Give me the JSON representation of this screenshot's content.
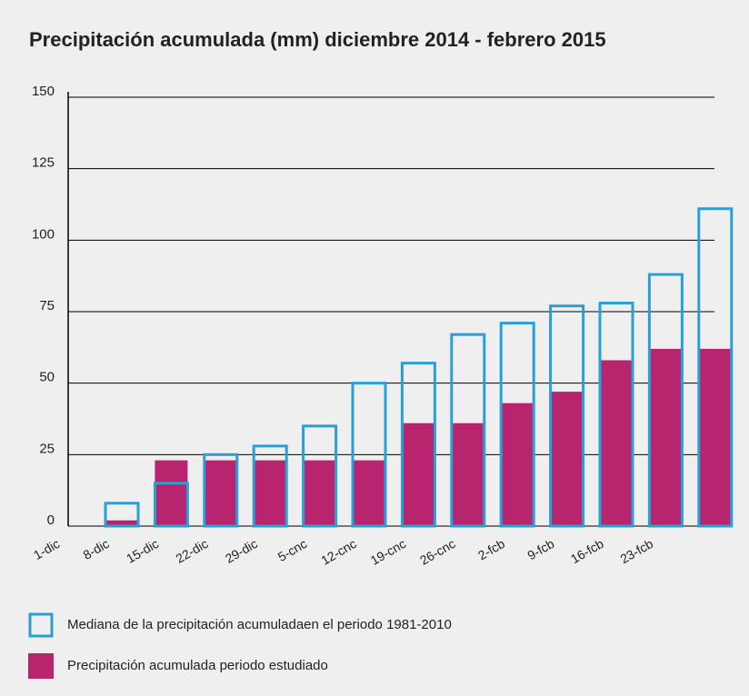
{
  "chart_data": {
    "type": "bar",
    "title": "Precipitación acumulada (mm) diciembre 2014 - febrero 2015",
    "categories": [
      "1-dic",
      "8-dic",
      "15-dic",
      "22-dic",
      "29-dic",
      "5-cnc",
      "12-cnc",
      "19-cnc",
      "26-cnc",
      "2-fcb",
      "9-fcb",
      "16-fcb",
      "23-fcb"
    ],
    "series": [
      {
        "name": "Mediana de la precipitación acumuladaen el periodo 1981-2010",
        "color": "#2a9fd6",
        "values": [
          8,
          15,
          25,
          28,
          35,
          50,
          57,
          67,
          71,
          77,
          78,
          88,
          111
        ]
      },
      {
        "name": "Precipitación acumulada periodo estudiado",
        "color": "#b8246e",
        "values": [
          2,
          23,
          23,
          23,
          23,
          23,
          36,
          36,
          43,
          47,
          58,
          62,
          62
        ]
      }
    ],
    "ylim": [
      0,
      150
    ],
    "yticks": [
      0,
      25,
      50,
      75,
      100,
      125,
      150
    ],
    "grid": true
  }
}
